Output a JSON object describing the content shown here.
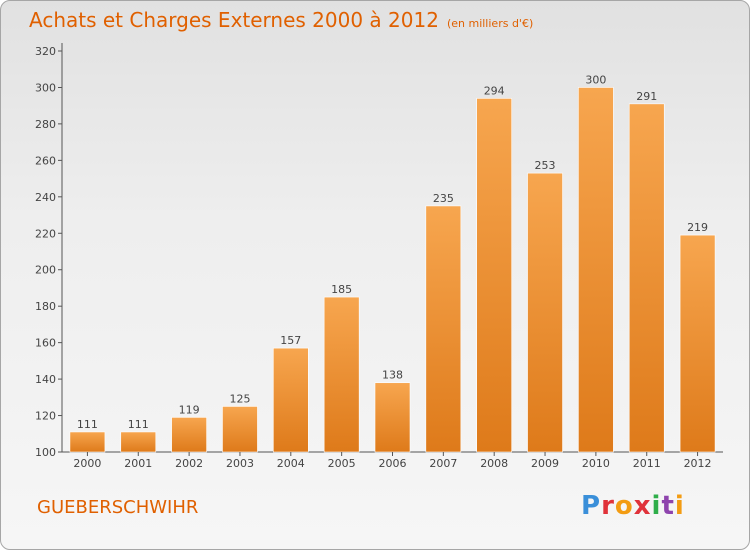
{
  "header": {
    "title": "Achats et Charges Externes 2000 à 2012",
    "subtitle": "(en milliers d'€)"
  },
  "footer": {
    "commune": "GUEBERSCHWIHR",
    "logo": "Proxiti"
  },
  "colors": {
    "accent": "#e06000",
    "bar_light": "#f7a64f",
    "bar_dark": "#de7a1a"
  },
  "chart_data": {
    "type": "bar",
    "title": "Achats et Charges Externes 2000 à 2012",
    "subtitle": "(en milliers d'€)",
    "categories": [
      "2000",
      "2001",
      "2002",
      "2003",
      "2004",
      "2005",
      "2006",
      "2007",
      "2008",
      "2009",
      "2010",
      "2011",
      "2012"
    ],
    "values": [
      111,
      111,
      119,
      125,
      157,
      185,
      138,
      235,
      294,
      253,
      300,
      291,
      219
    ],
    "ylim": [
      100,
      320
    ],
    "yticks": [
      100,
      120,
      140,
      160,
      180,
      200,
      220,
      240,
      260,
      280,
      300,
      320
    ],
    "grid": false,
    "legend": "none"
  }
}
